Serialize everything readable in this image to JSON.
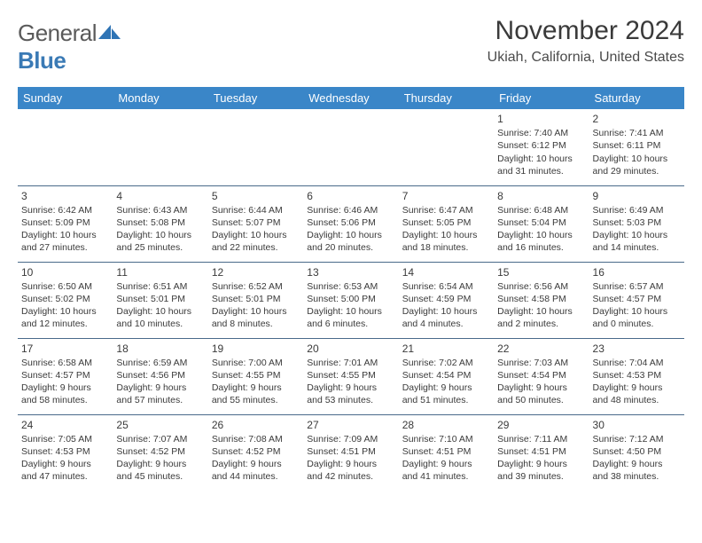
{
  "logo": {
    "part1": "General",
    "part2": "Blue"
  },
  "title": "November 2024",
  "location": "Ukiah, California, United States",
  "colors": {
    "header_bg": "#3a86c8",
    "header_text": "#ffffff",
    "row_border": "#4a6a8a",
    "text": "#3a3a3a",
    "logo_gray": "#5a5a5a",
    "logo_blue": "#3a7ab5"
  },
  "fonts": {
    "title_size": 30,
    "location_size": 16,
    "dayhead_size": 13,
    "cell_size": 10.5
  },
  "days": [
    "Sunday",
    "Monday",
    "Tuesday",
    "Wednesday",
    "Thursday",
    "Friday",
    "Saturday"
  ],
  "weeks": [
    [
      null,
      null,
      null,
      null,
      null,
      {
        "n": "1",
        "sunrise": "7:40 AM",
        "sunset": "6:12 PM",
        "dl1": "Daylight: 10 hours",
        "dl2": "and 31 minutes."
      },
      {
        "n": "2",
        "sunrise": "7:41 AM",
        "sunset": "6:11 PM",
        "dl1": "Daylight: 10 hours",
        "dl2": "and 29 minutes."
      }
    ],
    [
      {
        "n": "3",
        "sunrise": "6:42 AM",
        "sunset": "5:09 PM",
        "dl1": "Daylight: 10 hours",
        "dl2": "and 27 minutes."
      },
      {
        "n": "4",
        "sunrise": "6:43 AM",
        "sunset": "5:08 PM",
        "dl1": "Daylight: 10 hours",
        "dl2": "and 25 minutes."
      },
      {
        "n": "5",
        "sunrise": "6:44 AM",
        "sunset": "5:07 PM",
        "dl1": "Daylight: 10 hours",
        "dl2": "and 22 minutes."
      },
      {
        "n": "6",
        "sunrise": "6:46 AM",
        "sunset": "5:06 PM",
        "dl1": "Daylight: 10 hours",
        "dl2": "and 20 minutes."
      },
      {
        "n": "7",
        "sunrise": "6:47 AM",
        "sunset": "5:05 PM",
        "dl1": "Daylight: 10 hours",
        "dl2": "and 18 minutes."
      },
      {
        "n": "8",
        "sunrise": "6:48 AM",
        "sunset": "5:04 PM",
        "dl1": "Daylight: 10 hours",
        "dl2": "and 16 minutes."
      },
      {
        "n": "9",
        "sunrise": "6:49 AM",
        "sunset": "5:03 PM",
        "dl1": "Daylight: 10 hours",
        "dl2": "and 14 minutes."
      }
    ],
    [
      {
        "n": "10",
        "sunrise": "6:50 AM",
        "sunset": "5:02 PM",
        "dl1": "Daylight: 10 hours",
        "dl2": "and 12 minutes."
      },
      {
        "n": "11",
        "sunrise": "6:51 AM",
        "sunset": "5:01 PM",
        "dl1": "Daylight: 10 hours",
        "dl2": "and 10 minutes."
      },
      {
        "n": "12",
        "sunrise": "6:52 AM",
        "sunset": "5:01 PM",
        "dl1": "Daylight: 10 hours",
        "dl2": "and 8 minutes."
      },
      {
        "n": "13",
        "sunrise": "6:53 AM",
        "sunset": "5:00 PM",
        "dl1": "Daylight: 10 hours",
        "dl2": "and 6 minutes."
      },
      {
        "n": "14",
        "sunrise": "6:54 AM",
        "sunset": "4:59 PM",
        "dl1": "Daylight: 10 hours",
        "dl2": "and 4 minutes."
      },
      {
        "n": "15",
        "sunrise": "6:56 AM",
        "sunset": "4:58 PM",
        "dl1": "Daylight: 10 hours",
        "dl2": "and 2 minutes."
      },
      {
        "n": "16",
        "sunrise": "6:57 AM",
        "sunset": "4:57 PM",
        "dl1": "Daylight: 10 hours",
        "dl2": "and 0 minutes."
      }
    ],
    [
      {
        "n": "17",
        "sunrise": "6:58 AM",
        "sunset": "4:57 PM",
        "dl1": "Daylight: 9 hours",
        "dl2": "and 58 minutes."
      },
      {
        "n": "18",
        "sunrise": "6:59 AM",
        "sunset": "4:56 PM",
        "dl1": "Daylight: 9 hours",
        "dl2": "and 57 minutes."
      },
      {
        "n": "19",
        "sunrise": "7:00 AM",
        "sunset": "4:55 PM",
        "dl1": "Daylight: 9 hours",
        "dl2": "and 55 minutes."
      },
      {
        "n": "20",
        "sunrise": "7:01 AM",
        "sunset": "4:55 PM",
        "dl1": "Daylight: 9 hours",
        "dl2": "and 53 minutes."
      },
      {
        "n": "21",
        "sunrise": "7:02 AM",
        "sunset": "4:54 PM",
        "dl1": "Daylight: 9 hours",
        "dl2": "and 51 minutes."
      },
      {
        "n": "22",
        "sunrise": "7:03 AM",
        "sunset": "4:54 PM",
        "dl1": "Daylight: 9 hours",
        "dl2": "and 50 minutes."
      },
      {
        "n": "23",
        "sunrise": "7:04 AM",
        "sunset": "4:53 PM",
        "dl1": "Daylight: 9 hours",
        "dl2": "and 48 minutes."
      }
    ],
    [
      {
        "n": "24",
        "sunrise": "7:05 AM",
        "sunset": "4:53 PM",
        "dl1": "Daylight: 9 hours",
        "dl2": "and 47 minutes."
      },
      {
        "n": "25",
        "sunrise": "7:07 AM",
        "sunset": "4:52 PM",
        "dl1": "Daylight: 9 hours",
        "dl2": "and 45 minutes."
      },
      {
        "n": "26",
        "sunrise": "7:08 AM",
        "sunset": "4:52 PM",
        "dl1": "Daylight: 9 hours",
        "dl2": "and 44 minutes."
      },
      {
        "n": "27",
        "sunrise": "7:09 AM",
        "sunset": "4:51 PM",
        "dl1": "Daylight: 9 hours",
        "dl2": "and 42 minutes."
      },
      {
        "n": "28",
        "sunrise": "7:10 AM",
        "sunset": "4:51 PM",
        "dl1": "Daylight: 9 hours",
        "dl2": "and 41 minutes."
      },
      {
        "n": "29",
        "sunrise": "7:11 AM",
        "sunset": "4:51 PM",
        "dl1": "Daylight: 9 hours",
        "dl2": "and 39 minutes."
      },
      {
        "n": "30",
        "sunrise": "7:12 AM",
        "sunset": "4:50 PM",
        "dl1": "Daylight: 9 hours",
        "dl2": "and 38 minutes."
      }
    ]
  ],
  "labels": {
    "sunrise": "Sunrise: ",
    "sunset": "Sunset: "
  }
}
